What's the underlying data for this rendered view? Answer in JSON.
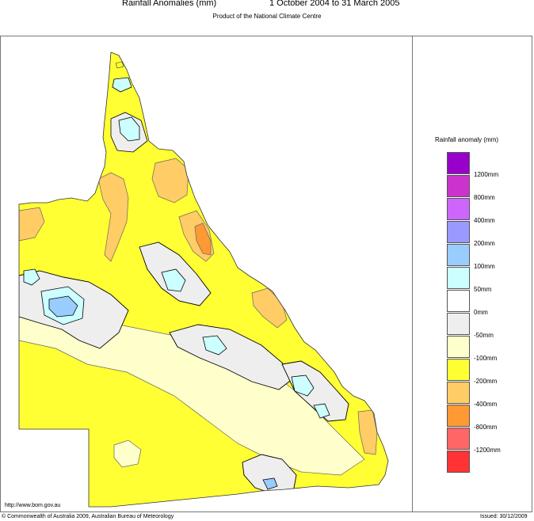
{
  "header": {
    "title_left": "Rainfall Anomalies (mm)",
    "title_right": "1 October 2004 to 31 March 2005",
    "subtitle": "Product of the National Climate Centre"
  },
  "legend": {
    "title": "Rainfall anomaly (mm)",
    "colors": [
      "#9900cc",
      "#cc33cc",
      "#cc66ff",
      "#9999ff",
      "#99ccff",
      "#ccffff",
      "#ffffff",
      "#eeeeee",
      "#ffffcc",
      "#ffff33",
      "#ffcc66",
      "#ff9933",
      "#ff6666",
      "#ff3333"
    ],
    "labels": [
      "1200mm",
      "800mm",
      "400mm",
      "200mm",
      "100mm",
      "50mm",
      "0mm",
      "-50mm",
      "-100mm",
      "-200mm",
      "-400mm",
      "-800mm",
      "-1200mm"
    ]
  },
  "map": {
    "region": "Queensland",
    "fill_colors": {
      "base": "#ffff33",
      "dry": "#ffcc66",
      "very_dry": "#ff9933",
      "neutral": "#eeeeee",
      "light": "#ffffcc",
      "wet": "#ccffff",
      "wetter": "#99ccff"
    }
  },
  "footer": {
    "url": "http://www.bom.gov.au",
    "copyright": "© Commonwealth of Australia 2009, Australian Bureau of Meteorology",
    "issued": "Issued: 30/12/2009"
  }
}
